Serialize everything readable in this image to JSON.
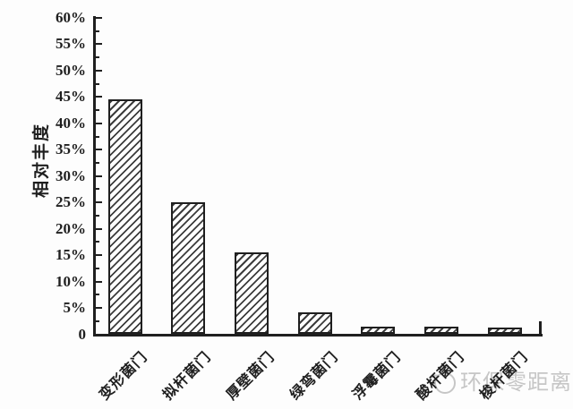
{
  "chart_data": {
    "type": "bar",
    "title": "",
    "ylabel": "相对丰度",
    "xlabel": "",
    "categories": [
      "变形菌门",
      "拟杆菌门",
      "厚壁菌门",
      "绿弯菌门",
      "浮霉菌门",
      "酸杆菌门",
      "梭杆菌门"
    ],
    "values": [
      44.5,
      25,
      15.6,
      4.2,
      1.5,
      1.5,
      1.2
    ],
    "unit": "%",
    "ylim": [
      0,
      60
    ],
    "ytick_step": 5,
    "minor_tick_step": 2.5,
    "ytick_labels": [
      "0",
      "5%",
      "10%",
      "15%",
      "20%",
      "25%",
      "30%",
      "35%",
      "40%",
      "45%",
      "50%",
      "55%",
      "60%"
    ],
    "grid": false,
    "legend": "none",
    "bar_style": "diagonal-hatch"
  },
  "watermark": {
    "text": "环保零距离",
    "logo": "bird-logo"
  },
  "colors": {
    "ink": "#1f1f1f",
    "hatch": "#3c3c3c",
    "watermark": "#c6c6c6",
    "background": "#fdfdfd"
  }
}
